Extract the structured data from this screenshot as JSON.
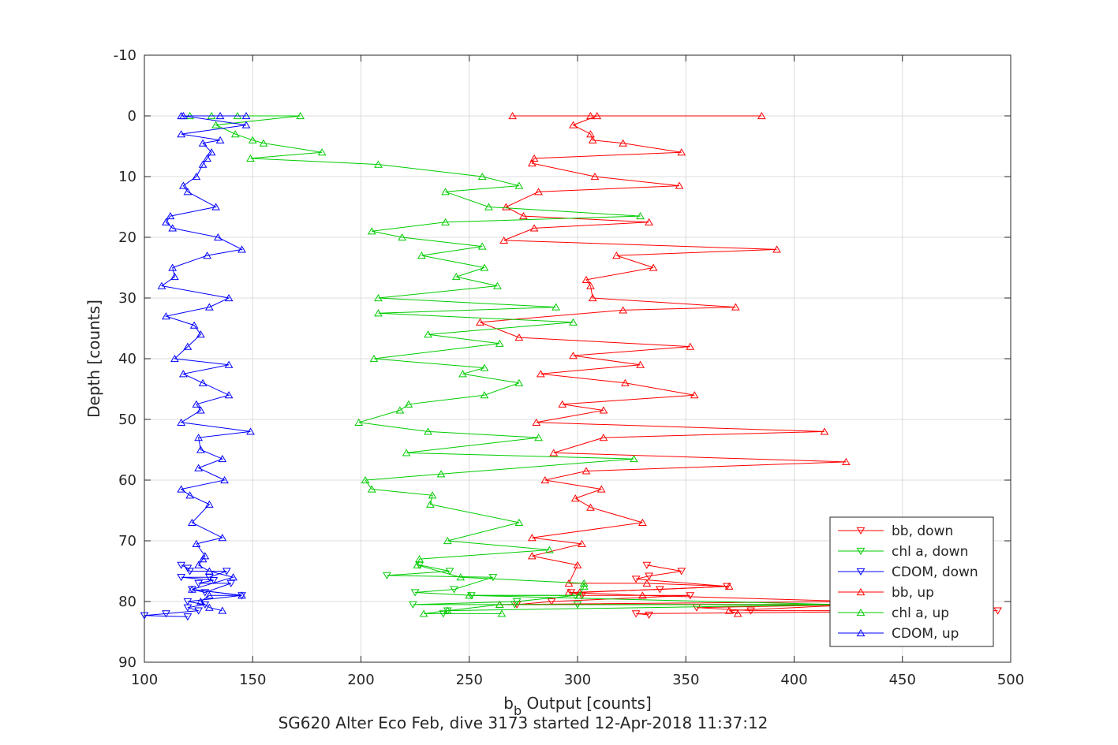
{
  "chart_data": {
    "type": "line",
    "title": "",
    "xlabel": "b",
    "xlabel_sub": "b",
    "xlabel_suffix": " Output [counts]",
    "ylabel": "Depth [counts]",
    "caption": "SG620 Alter Eco Feb, dive 3173 started 12-Apr-2018 11:37:12",
    "xlim": [
      100,
      500
    ],
    "ylim": [
      -10,
      90
    ],
    "y_reversed": true,
    "xticks": [
      100,
      150,
      200,
      250,
      300,
      350,
      400,
      450,
      500
    ],
    "yticks": [
      -10,
      0,
      10,
      20,
      30,
      40,
      50,
      60,
      70,
      80,
      90
    ],
    "grid": true,
    "legend_position": "bottom-right",
    "series": [
      {
        "name": "bb, down",
        "color": "#ff0000",
        "marker": "triangle-down",
        "points": [
          [
            332,
            74
          ],
          [
            348,
            75
          ],
          [
            333,
            75.8
          ],
          [
            327,
            76.3
          ],
          [
            369,
            77.5
          ],
          [
            338,
            78
          ],
          [
            297,
            78.5
          ],
          [
            302,
            79
          ],
          [
            352,
            79
          ],
          [
            288,
            80
          ],
          [
            272,
            80.5
          ],
          [
            430,
            80.5
          ],
          [
            355,
            81
          ],
          [
            380,
            81.5
          ],
          [
            494,
            81.5
          ],
          [
            327,
            82
          ],
          [
            333,
            82.2
          ]
        ]
      },
      {
        "name": "chl a, down",
        "color": "#00cc00",
        "marker": "triangle-down",
        "points": [
          [
            227,
            74
          ],
          [
            241,
            75
          ],
          [
            212,
            75.7
          ],
          [
            261,
            76
          ],
          [
            243,
            78
          ],
          [
            225,
            78.5
          ],
          [
            251,
            79
          ],
          [
            299,
            79
          ],
          [
            272,
            80
          ],
          [
            224,
            80.5
          ],
          [
            300,
            80.5
          ],
          [
            271,
            80.5
          ],
          [
            420,
            80.5
          ],
          [
            240,
            81.5
          ],
          [
            238,
            82
          ]
        ]
      },
      {
        "name": "CDOM, down",
        "color": "#0000ff",
        "marker": "triangle-down",
        "points": [
          [
            117,
            74
          ],
          [
            120,
            74.5
          ],
          [
            121,
            75
          ],
          [
            138,
            75
          ],
          [
            130,
            76
          ],
          [
            117,
            76
          ],
          [
            132,
            76.5
          ],
          [
            125,
            77
          ],
          [
            140,
            77
          ],
          [
            128,
            78.5
          ],
          [
            122,
            78
          ],
          [
            145,
            79
          ],
          [
            120,
            80
          ],
          [
            128,
            80.5
          ],
          [
            120,
            81
          ],
          [
            125,
            81.5
          ],
          [
            110,
            82
          ],
          [
            100,
            82.3
          ],
          [
            120,
            82.5
          ]
        ]
      },
      {
        "name": "bb, up",
        "color": "#ff0000",
        "marker": "triangle-up",
        "points": [
          [
            270,
            0
          ],
          [
            385,
            0
          ],
          [
            306,
            0
          ],
          [
            309,
            0
          ],
          [
            298,
            1.5
          ],
          [
            306,
            3
          ],
          [
            307,
            4
          ],
          [
            321,
            4.5
          ],
          [
            348,
            6
          ],
          [
            280,
            7
          ],
          [
            279,
            7.8
          ],
          [
            308,
            10
          ],
          [
            347,
            11.5
          ],
          [
            282,
            12.5
          ],
          [
            267,
            15
          ],
          [
            275,
            16.5
          ],
          [
            333,
            17.5
          ],
          [
            280,
            18.5
          ],
          [
            266,
            20.5
          ],
          [
            392,
            22
          ],
          [
            318,
            23
          ],
          [
            335,
            25
          ],
          [
            304,
            27
          ],
          [
            306,
            28
          ],
          [
            307,
            30
          ],
          [
            373,
            31.5
          ],
          [
            321,
            32
          ],
          [
            255,
            34
          ],
          [
            273,
            36.5
          ],
          [
            352,
            38
          ],
          [
            298,
            39.5
          ],
          [
            329,
            41
          ],
          [
            283,
            42.5
          ],
          [
            322,
            44
          ],
          [
            354,
            46
          ],
          [
            293,
            47.5
          ],
          [
            312,
            48.5
          ],
          [
            281,
            50.5
          ],
          [
            414,
            52
          ],
          [
            312,
            53
          ],
          [
            289,
            55.5
          ],
          [
            424,
            57
          ],
          [
            304,
            58.5
          ],
          [
            285,
            60
          ],
          [
            311,
            61.5
          ],
          [
            299,
            63
          ],
          [
            306,
            64.5
          ],
          [
            330,
            67
          ],
          [
            279,
            69.5
          ],
          [
            302,
            70.5
          ],
          [
            279,
            72.5
          ],
          [
            300,
            74
          ],
          [
            296,
            77
          ],
          [
            332,
            77
          ],
          [
            370,
            77.5
          ],
          [
            301,
            78.5
          ],
          [
            296,
            78.5
          ],
          [
            330,
            79
          ],
          [
            430,
            80
          ],
          [
            264,
            80.5
          ],
          [
            430,
            80.5
          ],
          [
            370,
            81.5
          ],
          [
            374,
            82
          ]
        ]
      },
      {
        "name": "chl a, up",
        "color": "#00cc00",
        "marker": "triangle-up",
        "points": [
          [
            121,
            0
          ],
          [
            131,
            0
          ],
          [
            143,
            0
          ],
          [
            172,
            0
          ],
          [
            133,
            1.5
          ],
          [
            142,
            3
          ],
          [
            150,
            4
          ],
          [
            155,
            4.5
          ],
          [
            182,
            6
          ],
          [
            149,
            7
          ],
          [
            208,
            8
          ],
          [
            256,
            10
          ],
          [
            273,
            11.5
          ],
          [
            239,
            12.5
          ],
          [
            259,
            15
          ],
          [
            329,
            16.5
          ],
          [
            239,
            17.5
          ],
          [
            205,
            19
          ],
          [
            219,
            20
          ],
          [
            256,
            21.5
          ],
          [
            228,
            23
          ],
          [
            257,
            25
          ],
          [
            244,
            26.5
          ],
          [
            263,
            28
          ],
          [
            208,
            30
          ],
          [
            290,
            31.5
          ],
          [
            208,
            32.5
          ],
          [
            298,
            34
          ],
          [
            231,
            36
          ],
          [
            264,
            37.5
          ],
          [
            206,
            40
          ],
          [
            257,
            41.5
          ],
          [
            247,
            42.5
          ],
          [
            273,
            44
          ],
          [
            257,
            46
          ],
          [
            222,
            47.5
          ],
          [
            218,
            48.5
          ],
          [
            199,
            50.5
          ],
          [
            231,
            52
          ],
          [
            282,
            53
          ],
          [
            221,
            55.5
          ],
          [
            326,
            56.5
          ],
          [
            237,
            59
          ],
          [
            202,
            60
          ],
          [
            205,
            61.5
          ],
          [
            233,
            62.5
          ],
          [
            232,
            64
          ],
          [
            273,
            67
          ],
          [
            240,
            70
          ],
          [
            287,
            71.5
          ],
          [
            227,
            73
          ],
          [
            226,
            74
          ],
          [
            246,
            76
          ],
          [
            303,
            77
          ],
          [
            303,
            77.5
          ],
          [
            301,
            79
          ],
          [
            250,
            79
          ],
          [
            420,
            80.5
          ],
          [
            264,
            80.5
          ],
          [
            240,
            81.5
          ],
          [
            229,
            82
          ],
          [
            265,
            82
          ]
        ]
      },
      {
        "name": "CDOM, up",
        "color": "#0000ff",
        "marker": "triangle-up",
        "points": [
          [
            117,
            0
          ],
          [
            135,
            0
          ],
          [
            147,
            0
          ],
          [
            118,
            0
          ],
          [
            147,
            1.5
          ],
          [
            117,
            3
          ],
          [
            135,
            4
          ],
          [
            127,
            4.5
          ],
          [
            131,
            6
          ],
          [
            129,
            7
          ],
          [
            127,
            8
          ],
          [
            124,
            10
          ],
          [
            118,
            11.5
          ],
          [
            120,
            12.5
          ],
          [
            133,
            15
          ],
          [
            112,
            16.5
          ],
          [
            110,
            17.5
          ],
          [
            113,
            18.5
          ],
          [
            134,
            20
          ],
          [
            145,
            22
          ],
          [
            129,
            23
          ],
          [
            113,
            25
          ],
          [
            114,
            26.5
          ],
          [
            108,
            28
          ],
          [
            139,
            30
          ],
          [
            130,
            31.5
          ],
          [
            110,
            33
          ],
          [
            123,
            34.5
          ],
          [
            126,
            36
          ],
          [
            120,
            38
          ],
          [
            114,
            40
          ],
          [
            139,
            41
          ],
          [
            118,
            42.5
          ],
          [
            127,
            44
          ],
          [
            139,
            46
          ],
          [
            124,
            47.5
          ],
          [
            126,
            48.5
          ],
          [
            117,
            50.5
          ],
          [
            149,
            52
          ],
          [
            125,
            53
          ],
          [
            126,
            55
          ],
          [
            136,
            56.5
          ],
          [
            125,
            58
          ],
          [
            137,
            60
          ],
          [
            117,
            61.5
          ],
          [
            121,
            62.5
          ],
          [
            130,
            64
          ],
          [
            122,
            67
          ],
          [
            136,
            69.5
          ],
          [
            124,
            70.5
          ],
          [
            128,
            72.5
          ],
          [
            127,
            73
          ],
          [
            125,
            74
          ],
          [
            130,
            75
          ],
          [
            141,
            76
          ],
          [
            122,
            78
          ],
          [
            145,
            79
          ],
          [
            130,
            79
          ],
          [
            126,
            80
          ],
          [
            130,
            81
          ],
          [
            136,
            81.5
          ]
        ]
      }
    ]
  }
}
